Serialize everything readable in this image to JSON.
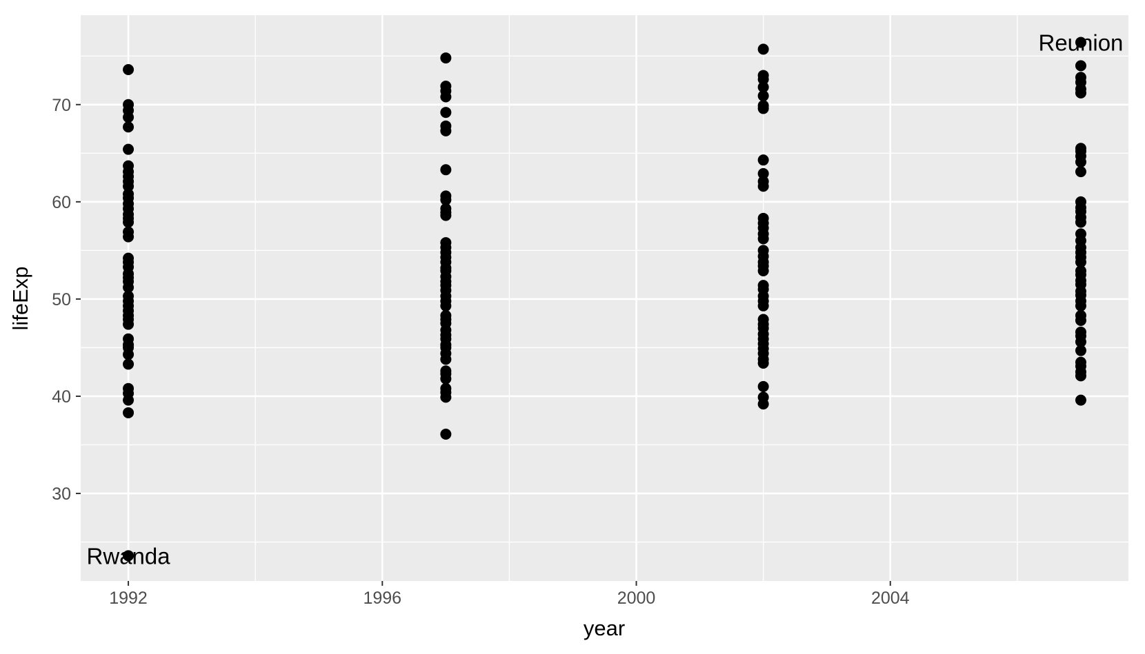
{
  "chart_data": {
    "type": "scatter",
    "title": "",
    "xlabel": "year",
    "ylabel": "lifeExp",
    "xlim": [
      1991.25,
      2007.75
    ],
    "ylim": [
      21.0,
      79.2
    ],
    "x_ticks": [
      1992,
      1996,
      2000,
      2004
    ],
    "x_tick_labels": [
      "1992",
      "1996",
      "2000",
      "2004"
    ],
    "x_minor_ticks": [
      1994,
      1998,
      2002,
      2006
    ],
    "y_ticks": [
      30,
      40,
      50,
      60,
      70
    ],
    "y_tick_labels": [
      "30",
      "40",
      "50",
      "60",
      "70"
    ],
    "y_minor_ticks": [
      25,
      35,
      45,
      55,
      65,
      75
    ],
    "grid": true,
    "legend": "none",
    "colors": {
      "panel": "#ebebeb",
      "grid": "#ffffff",
      "point": "#000000",
      "tick_text": "#4d4d4d",
      "tick_mark": "#333333"
    },
    "series": [
      {
        "x": 1992,
        "y": [
          23.6,
          38.3,
          39.6,
          40.3,
          40.8,
          43.3,
          44.3,
          45.0,
          45.3,
          45.9,
          47.4,
          47.9,
          48.3,
          48.8,
          49.3,
          49.8,
          50.3,
          51.2,
          51.8,
          52.2,
          52.6,
          53.3,
          53.8,
          54.2,
          56.4,
          56.9,
          57.9,
          58.3,
          58.7,
          59.3,
          59.8,
          60.4,
          60.8,
          61.6,
          62.1,
          62.6,
          63.1,
          63.7,
          65.4,
          67.7,
          68.7,
          69.4,
          70.0,
          73.6
        ]
      },
      {
        "x": 1997,
        "y": [
          36.1,
          39.9,
          40.4,
          40.8,
          41.8,
          42.3,
          42.6,
          43.8,
          44.4,
          45.0,
          45.3,
          45.9,
          46.3,
          46.8,
          47.5,
          47.9,
          48.3,
          49.3,
          49.8,
          50.3,
          50.9,
          51.4,
          51.8,
          52.3,
          52.9,
          53.2,
          53.8,
          54.3,
          54.8,
          55.3,
          55.8,
          58.6,
          58.9,
          59.3,
          60.2,
          60.6,
          63.3,
          67.3,
          67.8,
          69.2,
          70.8,
          71.4,
          71.9,
          74.8
        ]
      },
      {
        "x": 2002,
        "y": [
          39.2,
          39.9,
          41.0,
          43.4,
          43.8,
          44.4,
          44.9,
          45.4,
          45.9,
          46.4,
          47.0,
          47.4,
          47.9,
          49.3,
          49.8,
          50.3,
          51.0,
          51.4,
          52.9,
          53.4,
          53.8,
          54.4,
          55.0,
          56.2,
          56.7,
          57.3,
          57.8,
          58.3,
          61.6,
          62.1,
          62.9,
          64.3,
          69.6,
          69.9,
          70.9,
          71.8,
          72.6,
          73.0,
          75.7
        ]
      },
      {
        "x": 2007,
        "y": [
          39.6,
          42.1,
          42.5,
          43.1,
          43.5,
          44.7,
          45.6,
          46.2,
          46.6,
          47.8,
          48.3,
          49.3,
          49.8,
          50.4,
          50.8,
          51.5,
          51.9,
          52.5,
          52.9,
          53.8,
          54.3,
          54.8,
          55.3,
          56.0,
          56.7,
          57.9,
          58.4,
          59.0,
          59.4,
          60.0,
          63.1,
          64.1,
          64.7,
          65.2,
          65.5,
          71.2,
          71.6,
          72.3,
          72.8,
          74.0,
          76.4
        ]
      }
    ],
    "annotations": [
      {
        "text": "Rwanda",
        "x": 1992,
        "y": 23.6,
        "anchor": "middle"
      },
      {
        "text": "Reunion",
        "x": 2007,
        "y": 76.4,
        "anchor": "middle"
      }
    ]
  }
}
